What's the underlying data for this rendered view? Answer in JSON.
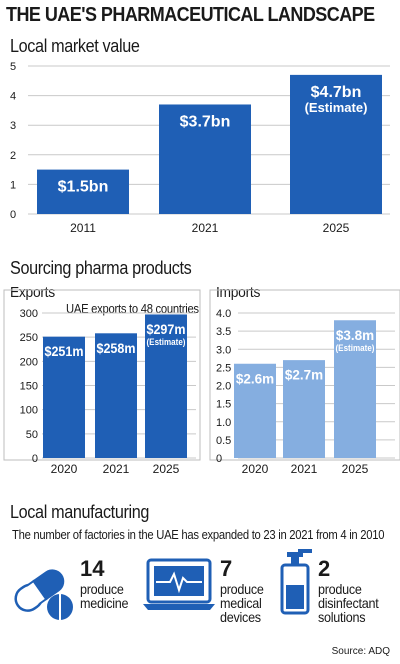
{
  "title": "THE UAE'S PHARMACEUTICAL LANDSCAPE",
  "colors": {
    "dark_blue": "#1f5fb5",
    "light_blue": "#85aee0",
    "grid": "#c9c9c9",
    "text": "#1a1a1a"
  },
  "chart_data": [
    {
      "type": "bar",
      "title": "Local market value",
      "categories": [
        "2011",
        "2021",
        "2025"
      ],
      "values": [
        1.5,
        3.7,
        4.7
      ],
      "data_labels": [
        "$1.5bn",
        "$3.7bn",
        "$4.7bn"
      ],
      "annotations": [
        "",
        "",
        "(Estimate)"
      ],
      "ylim": [
        0,
        5
      ],
      "yticks": [
        0,
        1,
        2,
        3,
        4,
        5
      ],
      "grid": true,
      "color": "#1f5fb5"
    },
    {
      "type": "bar",
      "title": "Exports",
      "note": "UAE exports to 48 countries",
      "categories": [
        "2020",
        "2021",
        "2025"
      ],
      "values": [
        251,
        258,
        297
      ],
      "data_labels": [
        "$251m",
        "$258m",
        "$297m"
      ],
      "annotations": [
        "",
        "",
        "(Estimate)"
      ],
      "ylim": [
        0,
        300
      ],
      "yticks": [
        0,
        50,
        100,
        150,
        200,
        250,
        300
      ],
      "grid": true,
      "color": "#1f5fb5"
    },
    {
      "type": "bar",
      "title": "Imports",
      "categories": [
        "2020",
        "2021",
        "2025"
      ],
      "values": [
        2.6,
        2.7,
        3.8
      ],
      "data_labels": [
        "$2.6m",
        "$2.7m",
        "$3.8m"
      ],
      "annotations": [
        "",
        "",
        "(Estimate)"
      ],
      "ylim": [
        0,
        4.0
      ],
      "yticks": [
        "0",
        "0.5",
        "1.0",
        "1.5",
        "2.0",
        "2.5",
        "3.0",
        "3.5",
        "4.0"
      ],
      "grid": true,
      "color": "#85aee0"
    }
  ],
  "sourcing_title": "Sourcing pharma products",
  "manufacturing": {
    "title": "Local manufacturing",
    "subtitle": "The number of factories in the UAE has expanded to 23 in 2021 from 4 in 2010",
    "items": [
      {
        "icon": "pill-icon",
        "count": "14",
        "label": "produce\nmedicine"
      },
      {
        "icon": "monitor-icon",
        "count": "7",
        "label": "produce\nmedical\ndevices"
      },
      {
        "icon": "spray-bottle-icon",
        "count": "2",
        "label": "produce\ndisinfectant\nsolutions"
      }
    ]
  },
  "source": "Source: ADQ"
}
